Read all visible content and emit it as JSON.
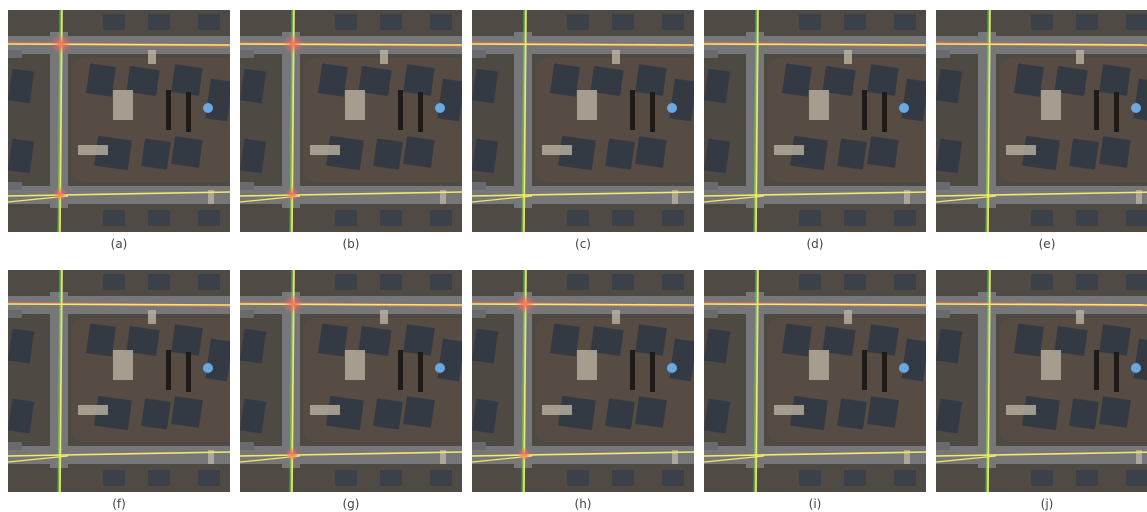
{
  "panels": [
    {
      "caption": "(a)"
    },
    {
      "caption": "(b)"
    },
    {
      "caption": "(c)"
    },
    {
      "caption": "(d)"
    },
    {
      "caption": "(e)"
    },
    {
      "caption": "(f)"
    },
    {
      "caption": "(g)"
    },
    {
      "caption": "(h)"
    },
    {
      "caption": "(i)"
    },
    {
      "caption": "(j)"
    }
  ]
}
